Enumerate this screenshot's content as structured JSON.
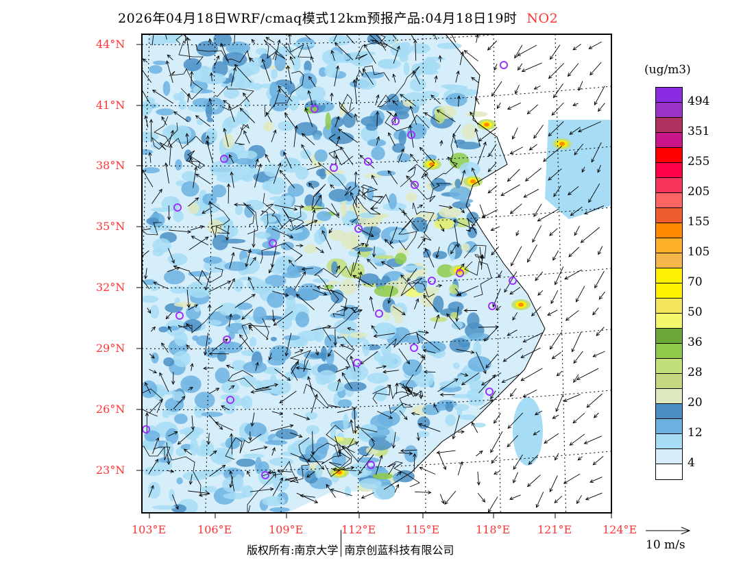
{
  "title": {
    "main": "2026年04月18日WRF/cmaq模式12km预报产品:04月18日19时",
    "species": "NO2"
  },
  "latitude_labels": [
    "44°N",
    "41°N",
    "38°N",
    "35°N",
    "32°N",
    "29°N",
    "26°N",
    "23°N"
  ],
  "longitude_labels": [
    "103°E",
    "106°E",
    "109°E",
    "112°E",
    "115°E",
    "118°E",
    "121°E",
    "124°E"
  ],
  "colorbar": {
    "unit": "(ug/m3)",
    "labels": [
      "494",
      "351",
      "255",
      "205",
      "155",
      "105",
      "70",
      "50",
      "36",
      "28",
      "20",
      "12",
      "4"
    ],
    "colors": [
      "#8a2be2",
      "#9b32c8",
      "#b03060",
      "#c8158a",
      "#ff0000",
      "#ff0049",
      "#f9345a",
      "#ff6464",
      "#ef5d2e",
      "#ff8a00",
      "#ffb02a",
      "#f5b74a",
      "#ffef00",
      "#fff200",
      "#f3e65a",
      "#f3f76c",
      "#6ba83a",
      "#8fcb4b",
      "#c3df7a",
      "#c4d77e",
      "#dfe9c0",
      "#4a8fc4",
      "#6cb2e0",
      "#a6dcf5",
      "#d6eefa",
      "#ffffff"
    ]
  },
  "wind_reference": {
    "label": "10 m/s"
  },
  "footer": {
    "left": "版权所有:南京大学",
    "right": "南京创蓝科技有限公司"
  },
  "colors": {
    "label_red": "#ff3333",
    "city_marker": "#9b30ff"
  }
}
